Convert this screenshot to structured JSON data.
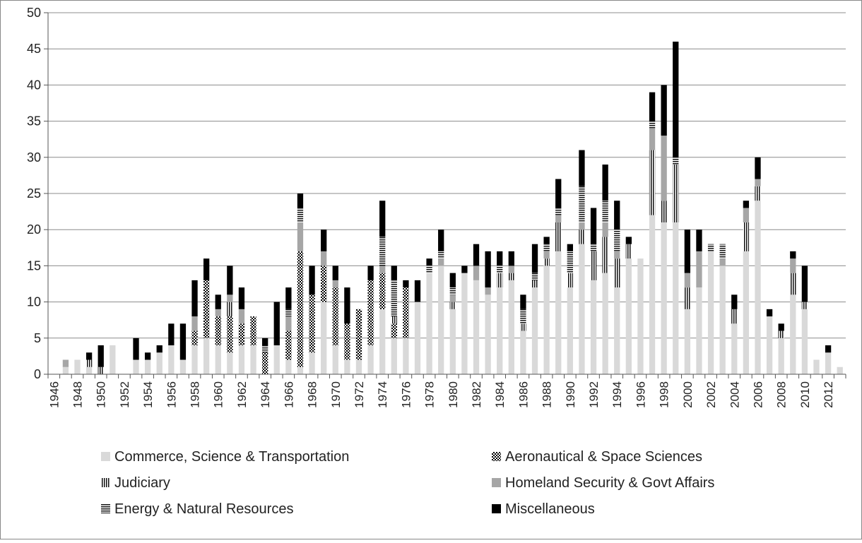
{
  "chart_data": {
    "type": "bar",
    "stacked": true,
    "title": "",
    "xlabel": "",
    "ylabel": "",
    "ylim": [
      0,
      50
    ],
    "ytick_step": 5,
    "grid": true,
    "legend_position": "bottom",
    "categories": [
      1946,
      1947,
      1948,
      1949,
      1950,
      1951,
      1952,
      1953,
      1954,
      1955,
      1956,
      1957,
      1958,
      1959,
      1960,
      1961,
      1962,
      1963,
      1964,
      1965,
      1966,
      1967,
      1968,
      1969,
      1970,
      1971,
      1972,
      1973,
      1974,
      1975,
      1976,
      1977,
      1978,
      1979,
      1980,
      1981,
      1982,
      1983,
      1984,
      1985,
      1986,
      1987,
      1988,
      1989,
      1990,
      1991,
      1992,
      1993,
      1994,
      1995,
      1996,
      1997,
      1998,
      1999,
      2000,
      2001,
      2002,
      2003,
      2004,
      2005,
      2006,
      2007,
      2008,
      2009,
      2010,
      2011,
      2012,
      2013
    ],
    "xtick_labels": [
      "1946",
      "1948",
      "1950",
      "1952",
      "1954",
      "1956",
      "1958",
      "1960",
      "1962",
      "1964",
      "1966",
      "1968",
      "1970",
      "1972",
      "1974",
      "1976",
      "1978",
      "1980",
      "1982",
      "1984",
      "1986",
      "1988",
      "1990",
      "1992",
      "1994",
      "1996",
      "1998",
      "2000",
      "2002",
      "2004",
      "2006",
      "2008",
      "2010",
      "2012"
    ],
    "series": [
      {
        "name": "Commerce, Science & Transportation",
        "pattern": "light",
        "values": [
          0,
          1,
          2,
          1,
          0,
          4,
          0,
          2,
          2,
          3,
          4,
          2,
          4,
          5,
          4,
          3,
          4,
          4,
          0,
          4,
          2,
          1,
          3,
          10,
          4,
          2,
          2,
          4,
          9,
          5,
          5,
          10,
          14,
          15,
          9,
          14,
          13,
          11,
          12,
          13,
          6,
          12,
          15,
          17,
          12,
          18,
          13,
          14,
          12,
          16,
          16,
          22,
          21,
          21,
          9,
          12,
          17,
          15,
          7,
          17,
          24,
          8,
          5,
          11,
          9,
          2,
          3,
          1
        ]
      },
      {
        "name": "Aeronautical & Space Sciences",
        "pattern": "dots",
        "values": [
          0,
          0,
          0,
          0,
          0,
          0,
          0,
          0,
          0,
          0,
          0,
          0,
          2,
          8,
          4,
          5,
          3,
          4,
          3,
          0,
          4,
          16,
          8,
          5,
          8,
          5,
          7,
          9,
          5,
          2,
          7,
          0,
          0,
          0,
          0,
          0,
          0,
          0,
          0,
          0,
          0,
          0,
          0,
          0,
          0,
          0,
          0,
          0,
          0,
          0,
          0,
          0,
          0,
          0,
          0,
          0,
          0,
          0,
          0,
          0,
          0,
          0,
          0,
          0,
          0,
          0,
          0,
          0
        ]
      },
      {
        "name": "Judiciary",
        "pattern": "vlines",
        "values": [
          0,
          0,
          0,
          1,
          1,
          0,
          0,
          0,
          0,
          0,
          0,
          0,
          0,
          0,
          0,
          2,
          0,
          0,
          0,
          0,
          0,
          0,
          0,
          0,
          0,
          0,
          0,
          0,
          0,
          1,
          0,
          0,
          0,
          0,
          1,
          0,
          0,
          0,
          2,
          1,
          1,
          1,
          1,
          4,
          2,
          2,
          4,
          5,
          4,
          2,
          0,
          9,
          3,
          8,
          3,
          0,
          0,
          0,
          2,
          4,
          2,
          0,
          1,
          3,
          1,
          0,
          0,
          0
        ]
      },
      {
        "name": "Homeland Security & Govt Affairs",
        "pattern": "gray",
        "values": [
          0,
          1,
          0,
          0,
          0,
          0,
          0,
          0,
          0,
          0,
          0,
          0,
          2,
          0,
          1,
          1,
          2,
          0,
          0,
          0,
          2,
          4,
          0,
          2,
          1,
          0,
          0,
          0,
          1,
          0,
          0,
          0,
          0,
          1,
          1,
          0,
          2,
          1,
          0,
          1,
          0,
          0,
          1,
          1,
          0,
          1,
          0,
          2,
          1,
          0,
          0,
          3,
          9,
          0,
          2,
          5,
          0,
          1,
          0,
          2,
          1,
          0,
          0,
          2,
          0,
          0,
          0,
          0
        ]
      },
      {
        "name": "Energy & Natural Resources",
        "pattern": "hlines",
        "values": [
          0,
          0,
          0,
          0,
          0,
          0,
          0,
          0,
          0,
          0,
          0,
          0,
          0,
          0,
          0,
          0,
          0,
          0,
          1,
          0,
          1,
          2,
          0,
          0,
          0,
          0,
          0,
          0,
          4,
          5,
          0,
          0,
          1,
          1,
          1,
          0,
          0,
          0,
          1,
          0,
          2,
          1,
          1,
          1,
          3,
          5,
          1,
          3,
          3,
          0,
          0,
          1,
          0,
          1,
          0,
          0,
          1,
          2,
          0,
          0,
          0,
          0,
          0,
          0,
          0,
          0,
          0,
          0
        ]
      },
      {
        "name": "Miscellaneous",
        "pattern": "black",
        "values": [
          0,
          0,
          0,
          1,
          3,
          0,
          0,
          3,
          1,
          1,
          3,
          5,
          5,
          3,
          2,
          4,
          3,
          0,
          1,
          6,
          3,
          2,
          4,
          3,
          2,
          5,
          0,
          2,
          5,
          2,
          1,
          3,
          1,
          3,
          2,
          1,
          3,
          5,
          2,
          2,
          2,
          4,
          1,
          4,
          1,
          5,
          5,
          5,
          4,
          1,
          0,
          4,
          7,
          16,
          6,
          3,
          0,
          0,
          2,
          1,
          3,
          1,
          1,
          1,
          5,
          0,
          1,
          0
        ]
      }
    ]
  }
}
